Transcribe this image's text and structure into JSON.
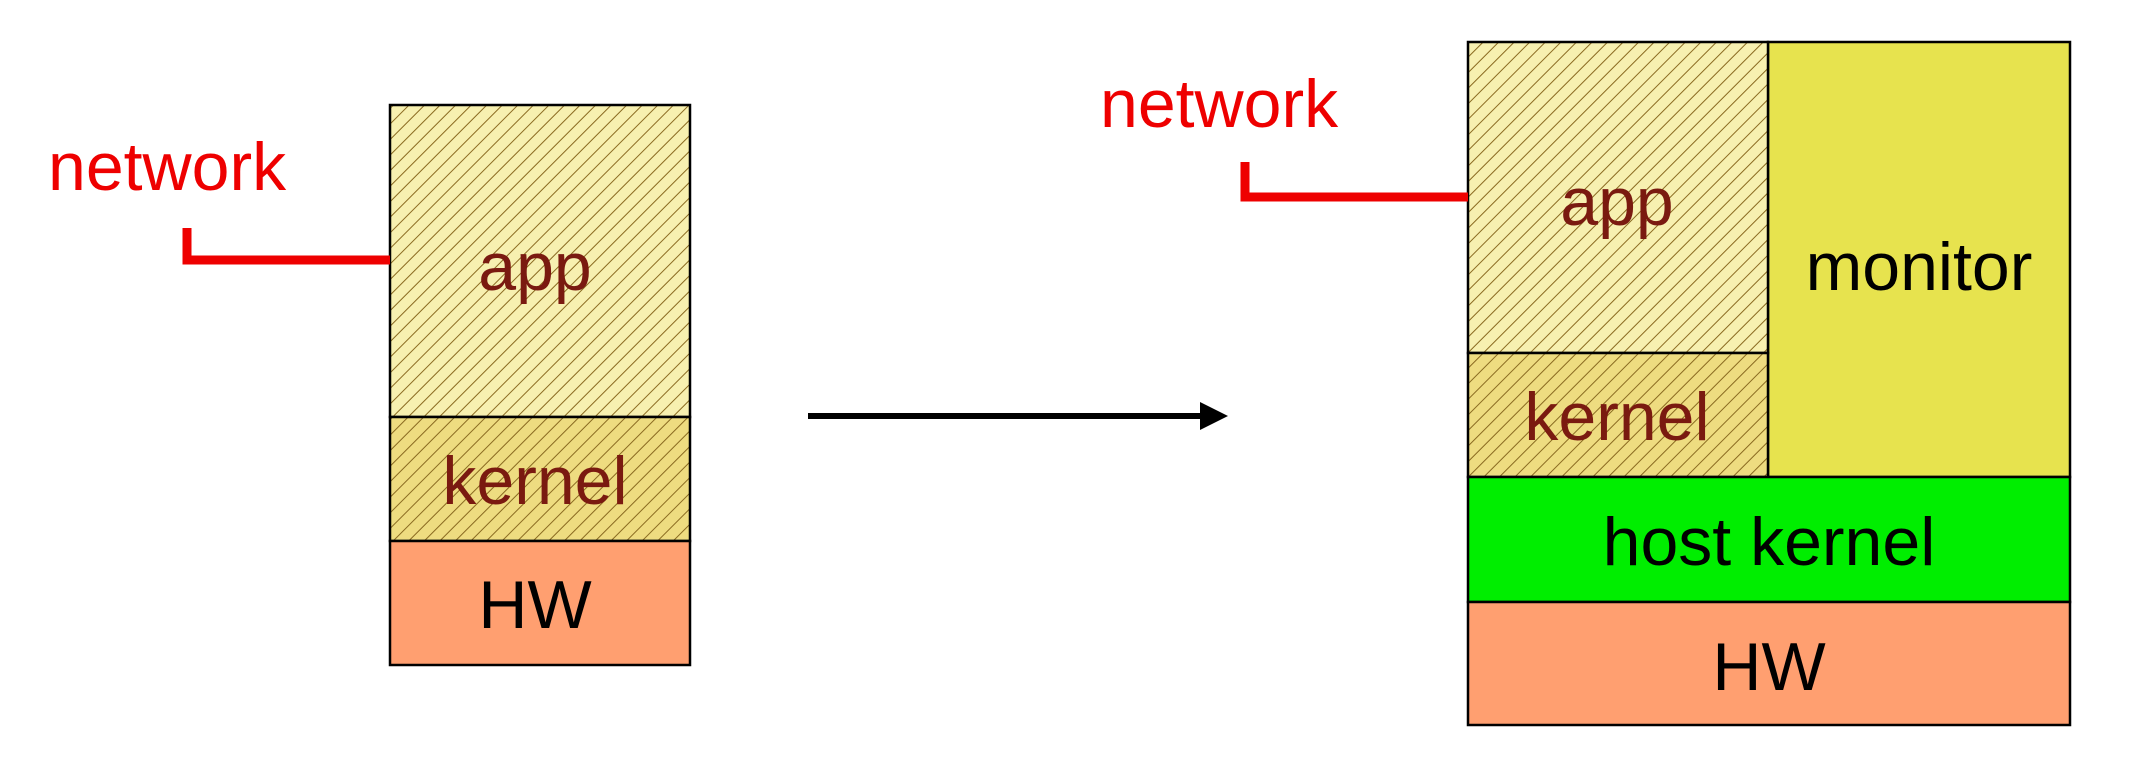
{
  "colors": {
    "network": "#ee0000",
    "guest_fill": "#f7f0b0",
    "kernel_fill": "#eedc80",
    "hatch": "#8a6a20",
    "guest_text": "#7a1a10",
    "hw": "#ff9f70",
    "host_kernel": "#00ee00",
    "monitor": "#e7e34e",
    "arrow": "#000000"
  },
  "left": {
    "network": "network",
    "app": "app",
    "kernel": "kernel",
    "hw": "HW"
  },
  "arrow": {
    "icon": "right-arrow-icon"
  },
  "right": {
    "network": "network",
    "app": "app",
    "kernel": "kernel",
    "monitor": "monitor",
    "host_kernel": "host kernel",
    "hw": "HW"
  }
}
